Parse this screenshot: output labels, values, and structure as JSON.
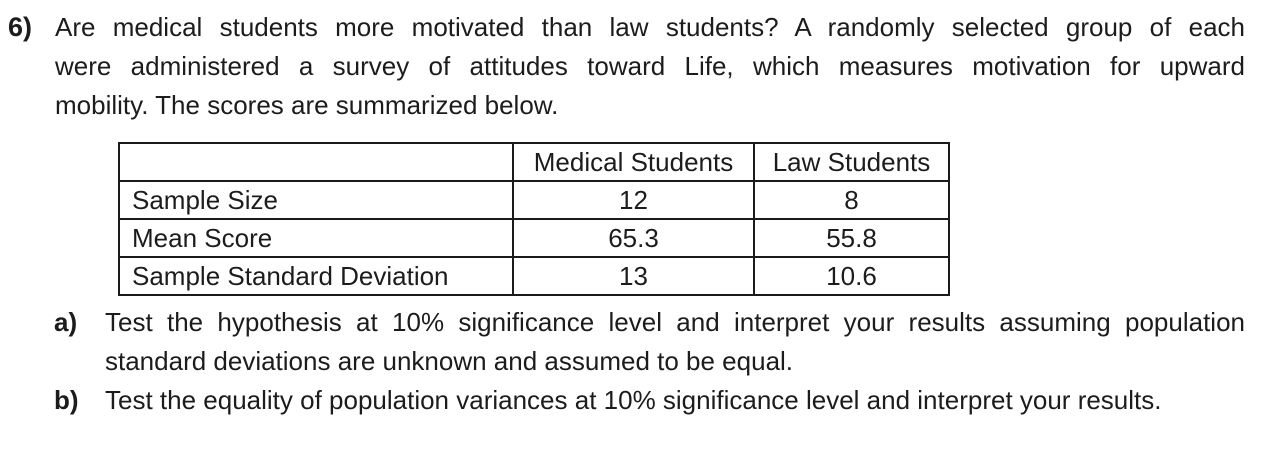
{
  "problem": {
    "number": "6)",
    "intro_lines": [
      "Are medical students more motivated than law students? A randomly selected group of each",
      "were administered a survey of attitudes toward Life, which measures motivation for upward",
      "mobility. The scores are summarized below."
    ]
  },
  "table": {
    "headers": {
      "corner": "",
      "medical": "Medical Students",
      "law": "Law Students"
    },
    "rows": [
      {
        "label": "Sample Size",
        "medical": "12",
        "law": "8"
      },
      {
        "label": "Mean Score",
        "medical": "65.3",
        "law": "55.8"
      },
      {
        "label": "Sample Standard Deviation",
        "medical": "13",
        "law": "10.6"
      }
    ]
  },
  "parts": {
    "a": {
      "label": "a)",
      "line1": "Test the hypothesis at 10% significance level and interpret your results assuming population",
      "line2": "standard deviations are unknown and assumed to be equal."
    },
    "b": {
      "label": "b)",
      "line1": "Test the equality of population variances at 10% significance level and interpret your results."
    }
  },
  "colors": {
    "background": "#ffffff",
    "text": "#1c1c1c",
    "table_border": "#1a1a1a"
  }
}
